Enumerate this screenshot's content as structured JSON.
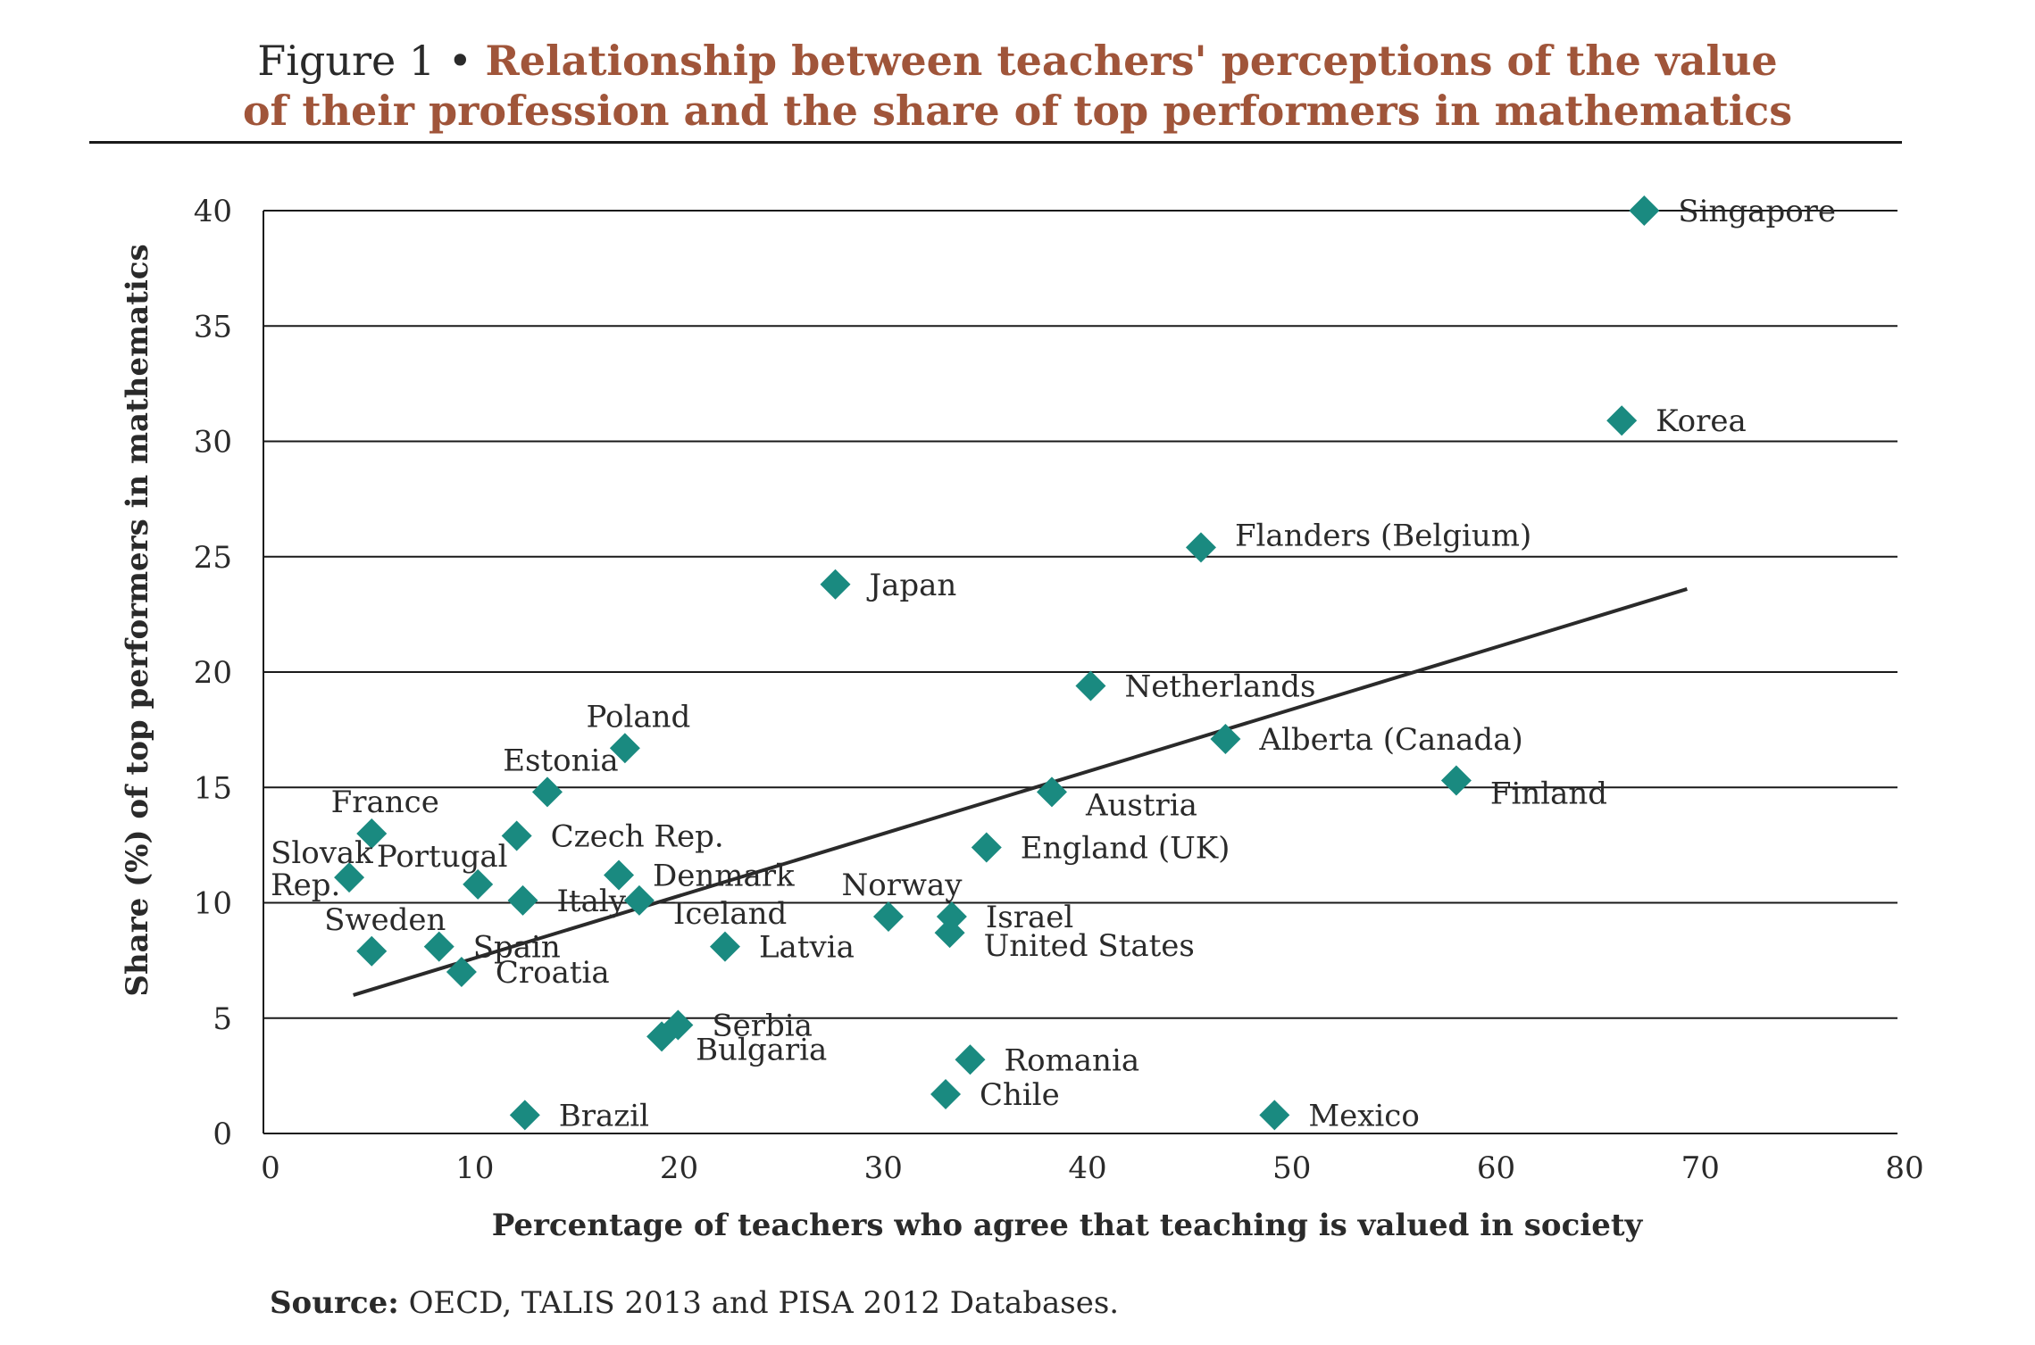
{
  "title": {
    "prefix": "Figure 1 •",
    "line1": "Relationship between teachers' perceptions of the value",
    "line2": "of their profession and the share of top performers in mathematics"
  },
  "source": {
    "label": "Source:",
    "text": "OECD, TALIS 2013 and PISA 2012 Databases."
  },
  "colors": {
    "marker": "#1a8a80",
    "title": "#a0553a",
    "axis": "#1a1a1a",
    "grid": "#1a1a1a",
    "trend": "#2a2a2a"
  },
  "chart_data": {
    "type": "scatter",
    "xlabel": "Percentage of teachers who agree that teaching is valued in society",
    "ylabel": "Share (%) of top performers in mathematics",
    "xlim": [
      0,
      80
    ],
    "ylim": [
      0,
      40
    ],
    "xticks": [
      0,
      10,
      20,
      30,
      40,
      50,
      60,
      70,
      80
    ],
    "yticks": [
      0,
      5,
      10,
      15,
      20,
      25,
      30,
      35,
      40
    ],
    "grid": "horizontal",
    "points": [
      {
        "label": "Singapore",
        "x": 67.6,
        "y": 40.0,
        "label_pos": "right"
      },
      {
        "label": "Korea",
        "x": 66.5,
        "y": 30.9,
        "label_pos": "right"
      },
      {
        "label": "Flanders (Belgium)",
        "x": 45.9,
        "y": 25.4,
        "label_pos": "right-up"
      },
      {
        "label": "Japan",
        "x": 28.0,
        "y": 23.8,
        "label_pos": "right"
      },
      {
        "label": "Netherlands",
        "x": 40.5,
        "y": 19.4,
        "label_pos": "right"
      },
      {
        "label": "Alberta (Canada)",
        "x": 47.1,
        "y": 17.1,
        "label_pos": "right"
      },
      {
        "label": "Finland",
        "x": 58.4,
        "y": 15.3,
        "label_pos": "right-down"
      },
      {
        "label": "Austria",
        "x": 38.6,
        "y": 14.8,
        "label_pos": "right-down"
      },
      {
        "label": "England (UK)",
        "x": 35.4,
        "y": 12.4,
        "label_pos": "right"
      },
      {
        "label": "Poland",
        "x": 17.7,
        "y": 16.7,
        "label_pos": "above"
      },
      {
        "label": "Estonia",
        "x": 13.9,
        "y": 14.8,
        "label_pos": "above"
      },
      {
        "label": "France",
        "x": 5.3,
        "y": 13.0,
        "label_pos": "above"
      },
      {
        "label": "Czech Rep.",
        "x": 12.4,
        "y": 12.9,
        "label_pos": "right"
      },
      {
        "label": "Slovak Rep.",
        "x": 4.2,
        "y": 11.1,
        "label_pos": "left-stack"
      },
      {
        "label": "Portugal",
        "x": 10.5,
        "y": 10.8,
        "label_pos": "above-left"
      },
      {
        "label": "Italy",
        "x": 12.7,
        "y": 10.1,
        "label_pos": "right"
      },
      {
        "label": "Denmark",
        "x": 17.4,
        "y": 11.2,
        "label_pos": "right"
      },
      {
        "label": "Iceland",
        "x": 18.4,
        "y": 10.1,
        "label_pos": "right-down"
      },
      {
        "label": "Sweden",
        "x": 5.3,
        "y": 7.9,
        "label_pos": "above"
      },
      {
        "label": "Spain",
        "x": 8.6,
        "y": 8.1,
        "label_pos": "right"
      },
      {
        "label": "Croatia",
        "x": 9.7,
        "y": 7.0,
        "label_pos": "right"
      },
      {
        "label": "Latvia",
        "x": 22.6,
        "y": 8.1,
        "label_pos": "right"
      },
      {
        "label": "Norway",
        "x": 30.6,
        "y": 9.4,
        "label_pos": "above"
      },
      {
        "label": "Israel",
        "x": 33.7,
        "y": 9.4,
        "label_pos": "right"
      },
      {
        "label": "United States",
        "x": 33.6,
        "y": 8.7,
        "label_pos": "right-down"
      },
      {
        "label": "Serbia",
        "x": 20.3,
        "y": 4.7,
        "label_pos": "right"
      },
      {
        "label": "Bulgaria",
        "x": 19.5,
        "y": 4.2,
        "label_pos": "right-down"
      },
      {
        "label": "Romania",
        "x": 34.6,
        "y": 3.2,
        "label_pos": "right"
      },
      {
        "label": "Chile",
        "x": 33.4,
        "y": 1.7,
        "label_pos": "right"
      },
      {
        "label": "Brazil",
        "x": 12.8,
        "y": 0.8,
        "label_pos": "right"
      },
      {
        "label": "Mexico",
        "x": 49.5,
        "y": 0.8,
        "label_pos": "right"
      }
    ],
    "trendline": {
      "x": [
        4.4,
        69.7
      ],
      "y": [
        6.0,
        23.6
      ]
    }
  }
}
